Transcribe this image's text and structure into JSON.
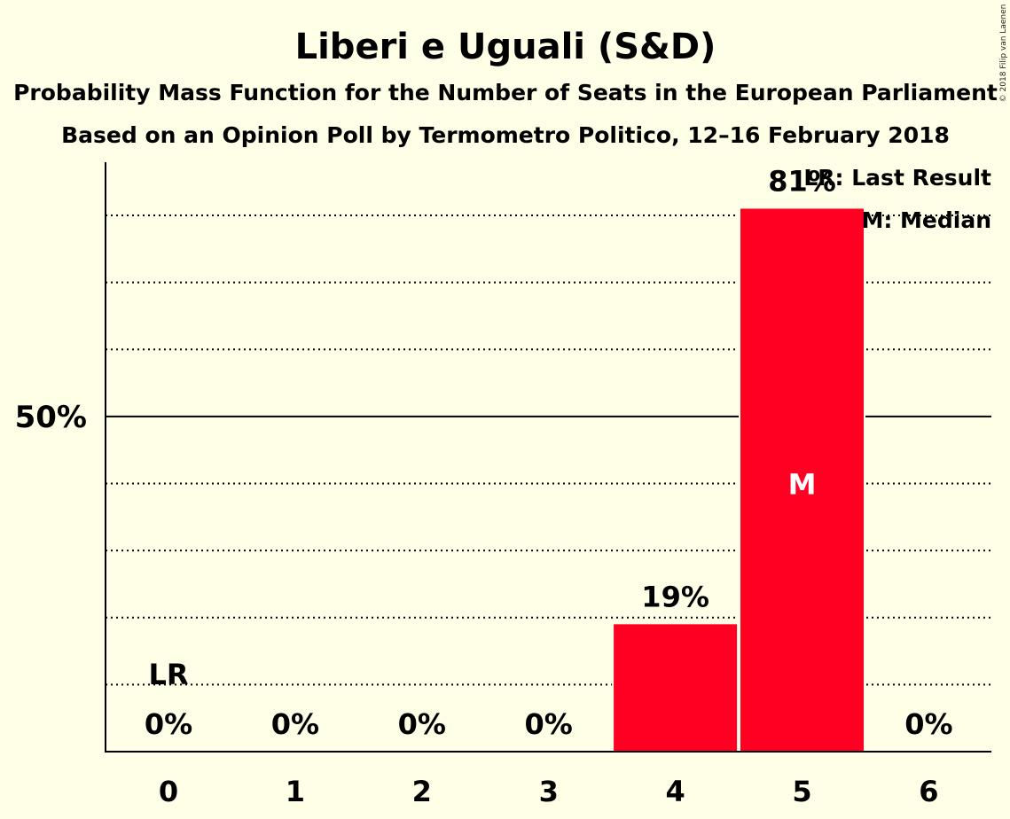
{
  "title": "Liberi e Uguali (S&D)",
  "subtitle1": "Probability Mass Function for the Number of Seats in the European Parliament",
  "subtitle2": "Based on an Opinion Poll by Termometro Politico, 12–16 February 2018",
  "copyright": "© 2018 Filip van Laenen",
  "legend": {
    "last_result": "LR: Last Result",
    "median": "M: Median"
  },
  "colors": {
    "background": "#FFFEE6",
    "bar": "#FF0023",
    "text": "#000000"
  },
  "chart_data": {
    "type": "bar",
    "categories": [
      "0",
      "1",
      "2",
      "3",
      "4",
      "5",
      "6"
    ],
    "values": [
      0,
      0,
      0,
      0,
      19,
      81,
      0
    ],
    "value_labels": [
      "0%",
      "0%",
      "0%",
      "0%",
      "19%",
      "81%",
      "0%"
    ],
    "ylim": [
      0,
      88
    ],
    "y_ticks": [
      {
        "value": 50,
        "label": "50%"
      }
    ],
    "gridlines": [
      10,
      20,
      30,
      40,
      60,
      70,
      80
    ],
    "last_result": {
      "category": "0",
      "label": "LR"
    },
    "median": {
      "category": "5",
      "label": "M"
    },
    "xlabel": "",
    "ylabel": ""
  }
}
